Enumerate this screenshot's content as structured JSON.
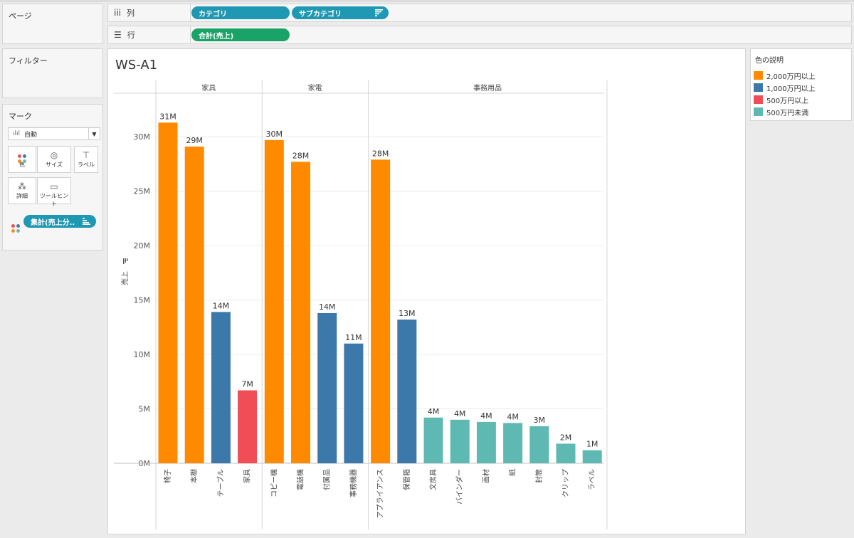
{
  "panels": {
    "pages_label": "ページ",
    "filters_label": "フィルター",
    "marks_label": "マーク"
  },
  "shelves": {
    "columns": {
      "label": "列",
      "icon": "columns-icon",
      "pills": [
        "カテゴリ",
        "サブカテゴリ"
      ]
    },
    "rows": {
      "label": "行",
      "icon": "rows-icon",
      "pills": [
        "合計(売上)"
      ]
    }
  },
  "marks": {
    "type": "自動",
    "buttons": {
      "color": "色",
      "size": "サイズ",
      "label": "ラベル",
      "detail": "詳細",
      "tooltip": "ツールヒント"
    },
    "field_pill": "集計(売上分.."
  },
  "worksheet": {
    "title": "WS-A1"
  },
  "legend": {
    "title": "色の説明",
    "items": [
      {
        "label": "2,000万円以上",
        "color": "#ff8a00"
      },
      {
        "label": "1,000万円以上",
        "color": "#3c78a9"
      },
      {
        "label": "500万円以上",
        "color": "#f04d56"
      },
      {
        "label": "500万円未満",
        "color": "#5eb9b2"
      }
    ]
  },
  "chart_data": {
    "type": "bar",
    "ylabel": "売上",
    "ylim": [
      0,
      34
    ],
    "yticks": [
      0,
      5,
      10,
      15,
      20,
      25,
      30
    ],
    "ytick_labels": [
      "0M",
      "5M",
      "10M",
      "15M",
      "20M",
      "25M",
      "30M"
    ],
    "grid": true,
    "groups": [
      {
        "name": "家具",
        "bars": [
          {
            "category": "椅子",
            "value": 31.3,
            "label": "31M",
            "color": "#ff8a00"
          },
          {
            "category": "本棚",
            "value": 29.1,
            "label": "29M",
            "color": "#ff8a00"
          },
          {
            "category": "テーブル",
            "value": 13.9,
            "label": "14M",
            "color": "#3c78a9"
          },
          {
            "category": "家具",
            "value": 6.7,
            "label": "7M",
            "color": "#f04d56"
          }
        ]
      },
      {
        "name": "家電",
        "bars": [
          {
            "category": "コピー機",
            "value": 29.7,
            "label": "30M",
            "color": "#ff8a00"
          },
          {
            "category": "電話機",
            "value": 27.7,
            "label": "28M",
            "color": "#ff8a00"
          },
          {
            "category": "付属品",
            "value": 13.8,
            "label": "14M",
            "color": "#3c78a9"
          },
          {
            "category": "事務機器",
            "value": 11.0,
            "label": "11M",
            "color": "#3c78a9"
          }
        ]
      },
      {
        "name": "事務用品",
        "bars": [
          {
            "category": "アプライアンス",
            "value": 27.9,
            "label": "28M",
            "color": "#ff8a00"
          },
          {
            "category": "保管箱",
            "value": 13.2,
            "label": "13M",
            "color": "#3c78a9"
          },
          {
            "category": "文房具",
            "value": 4.2,
            "label": "4M",
            "color": "#5eb9b2"
          },
          {
            "category": "バインダー",
            "value": 4.0,
            "label": "4M",
            "color": "#5eb9b2"
          },
          {
            "category": "画材",
            "value": 3.8,
            "label": "4M",
            "color": "#5eb9b2"
          },
          {
            "category": "紙",
            "value": 3.7,
            "label": "4M",
            "color": "#5eb9b2"
          },
          {
            "category": "封筒",
            "value": 3.4,
            "label": "3M",
            "color": "#5eb9b2"
          },
          {
            "category": "クリップ",
            "value": 1.8,
            "label": "2M",
            "color": "#5eb9b2"
          },
          {
            "category": "ラベル",
            "value": 1.2,
            "label": "1M",
            "color": "#5eb9b2"
          }
        ]
      }
    ]
  }
}
